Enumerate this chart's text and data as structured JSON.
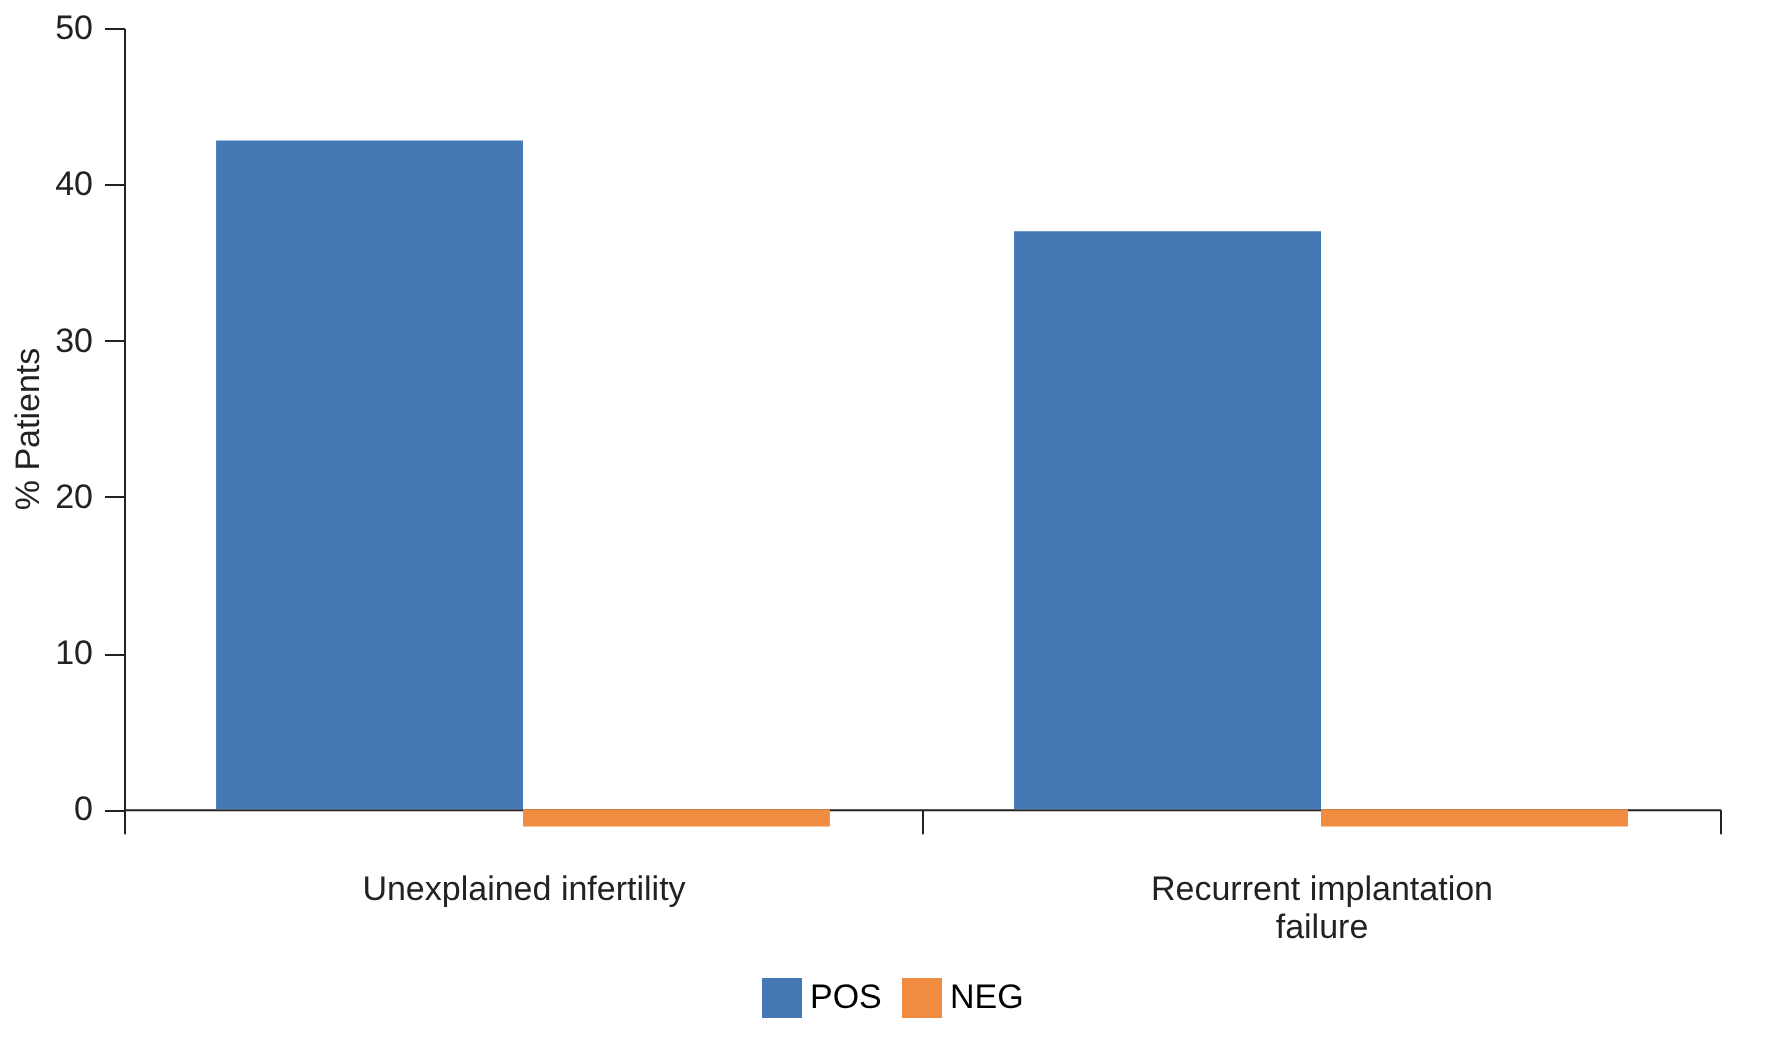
{
  "chart_data": {
    "type": "bar",
    "ylabel": "% Patients",
    "categories": [
      "Unexplained infertility",
      "Recurrent implantation failure"
    ],
    "series": [
      {
        "name": "POS",
        "color": "#4479b5",
        "values": [
          42.8,
          37.0
        ]
      },
      {
        "name": "NEG",
        "color": "#f08c40",
        "values": [
          -1.1,
          -1.1
        ]
      }
    ],
    "ylim": [
      -1.2,
      50
    ],
    "yticks": [
      0,
      10,
      20,
      30,
      40,
      50
    ],
    "grid": false,
    "legend": "bottom"
  }
}
